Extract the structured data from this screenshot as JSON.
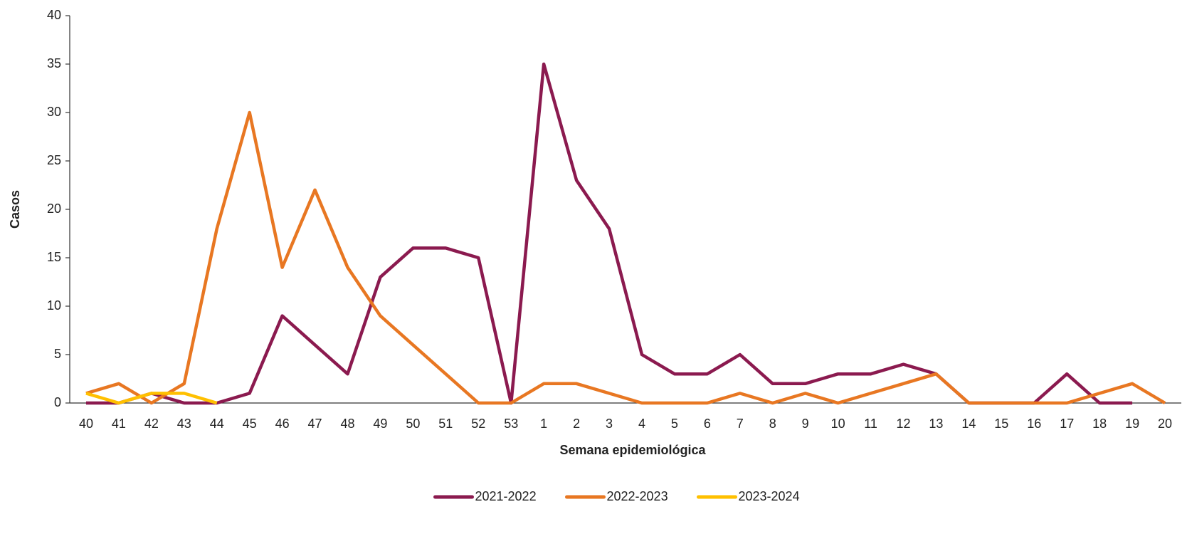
{
  "chart_data": {
    "type": "line",
    "y_label": "Casos",
    "x_label": "Semana epidemiológica",
    "categories": [
      "40",
      "41",
      "42",
      "43",
      "44",
      "45",
      "46",
      "47",
      "48",
      "49",
      "50",
      "51",
      "52",
      "53",
      "1",
      "2",
      "3",
      "4",
      "5",
      "6",
      "7",
      "8",
      "9",
      "10",
      "11",
      "12",
      "13",
      "14",
      "15",
      "16",
      "17",
      "18",
      "19",
      "20"
    ],
    "series": [
      {
        "name": "2021-2022",
        "color": "#8b1a4f",
        "values": [
          0,
          0,
          1,
          0,
          0,
          1,
          9,
          6,
          3,
          13,
          16,
          16,
          15,
          0,
          35,
          23,
          18,
          5,
          3,
          3,
          5,
          2,
          2,
          3,
          3,
          4,
          3,
          0,
          0,
          0,
          3,
          0,
          0,
          null
        ]
      },
      {
        "name": "2022-2023",
        "color": "#e87722",
        "values": [
          1,
          2,
          0,
          2,
          18,
          30,
          14,
          22,
          14,
          9,
          6,
          3,
          0,
          0,
          2,
          2,
          1,
          0,
          0,
          0,
          1,
          0,
          1,
          0,
          1,
          2,
          3,
          0,
          0,
          0,
          0,
          1,
          2,
          0
        ]
      },
      {
        "name": "2023-2024",
        "color": "#ffc000",
        "values": [
          1,
          0,
          1,
          1,
          0,
          null,
          null,
          null,
          null,
          null,
          null,
          null,
          null,
          null,
          null,
          null,
          null,
          null,
          null,
          null,
          null,
          null,
          null,
          null,
          null,
          null,
          null,
          null,
          null,
          null,
          null,
          null,
          null,
          null
        ]
      }
    ],
    "ylim": [
      0,
      40
    ],
    "yticks": [
      0,
      5,
      10,
      15,
      20,
      25,
      30,
      35,
      40
    ],
    "legend": "bottom"
  }
}
